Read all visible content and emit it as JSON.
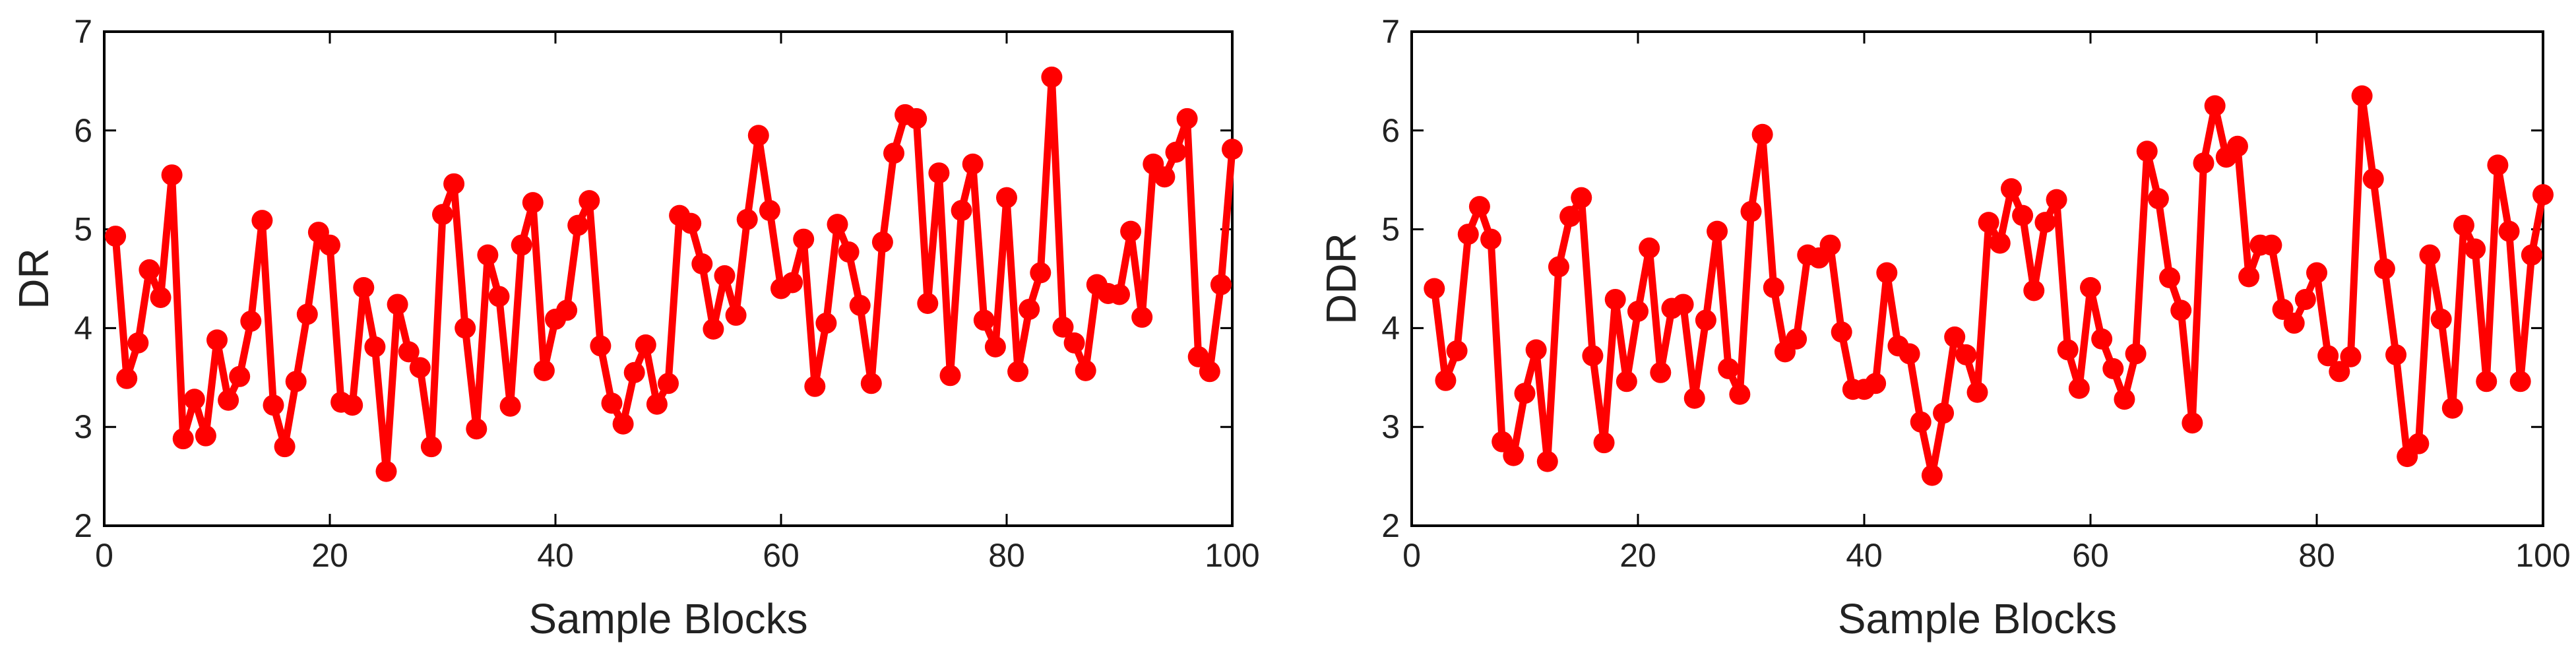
{
  "chart_data": [
    {
      "type": "line",
      "xlabel": "Sample Blocks",
      "ylabel": "DR",
      "xlim": [
        0,
        100
      ],
      "ylim": [
        2,
        7
      ],
      "xticks": [
        0,
        20,
        40,
        60,
        80,
        100
      ],
      "yticks": [
        2,
        3,
        4,
        5,
        6,
        7
      ],
      "grid": false,
      "line_color": "#ff0000",
      "marker": "circle",
      "series": [
        {
          "x": [
            1,
            2,
            3,
            4,
            5,
            6,
            7,
            8,
            9,
            10,
            11,
            12,
            13,
            14,
            15,
            16,
            17,
            18,
            19,
            20,
            21,
            22,
            23,
            24,
            25,
            26,
            27,
            28,
            29,
            30,
            31,
            32,
            33,
            34,
            35,
            36,
            37,
            38,
            39,
            40,
            41,
            42,
            43,
            44,
            45,
            46,
            47,
            48,
            49,
            50,
            51,
            52,
            53,
            54,
            55,
            56,
            57,
            58,
            59,
            60,
            61,
            62,
            63,
            64,
            65,
            66,
            67,
            68,
            69,
            70,
            71,
            72,
            73,
            74,
            75,
            76,
            77,
            78,
            79,
            80,
            81,
            82,
            83,
            84,
            85,
            86,
            87,
            88,
            89,
            90,
            91,
            92,
            93,
            94,
            95,
            96,
            97,
            98,
            99,
            100
          ],
          "y": [
            4.93,
            3.49,
            3.85,
            4.59,
            4.31,
            5.55,
            2.88,
            3.28,
            2.91,
            3.88,
            3.27,
            3.51,
            4.07,
            5.09,
            3.22,
            2.8,
            3.46,
            4.14,
            4.97,
            4.84,
            3.25,
            3.22,
            4.41,
            3.81,
            2.55,
            4.24,
            3.76,
            3.6,
            2.8,
            5.15,
            5.46,
            4.0,
            2.98,
            4.74,
            4.32,
            3.21,
            4.84,
            5.27,
            3.57,
            4.09,
            4.18,
            5.04,
            5.29,
            3.82,
            3.24,
            3.03,
            3.55,
            3.83,
            3.23,
            3.44,
            5.14,
            5.06,
            4.65,
            3.99,
            4.53,
            4.13,
            5.1,
            5.95,
            5.19,
            4.4,
            4.46,
            4.9,
            3.41,
            4.05,
            5.05,
            4.77,
            4.23,
            3.44,
            4.87,
            5.77,
            6.16,
            6.12,
            4.25,
            5.57,
            3.52,
            5.19,
            5.66,
            4.08,
            3.81,
            5.32,
            3.56,
            4.19,
            4.56,
            6.54,
            4.01,
            3.85,
            3.57,
            4.44,
            4.35,
            4.34,
            4.98,
            4.11,
            5.66,
            5.53,
            5.78,
            6.12,
            3.71,
            3.56,
            4.44,
            5.81
          ]
        }
      ]
    },
    {
      "type": "line",
      "xlabel": "Sample Blocks",
      "ylabel": "DDR",
      "xlim": [
        0,
        100
      ],
      "ylim": [
        2,
        7
      ],
      "xticks": [
        0,
        20,
        40,
        60,
        80,
        100
      ],
      "yticks": [
        2,
        3,
        4,
        5,
        6,
        7
      ],
      "grid": false,
      "line_color": "#ff0000",
      "marker": "circle",
      "series": [
        {
          "x": [
            2,
            3,
            4,
            5,
            6,
            7,
            8,
            9,
            10,
            11,
            12,
            13,
            14,
            15,
            16,
            17,
            18,
            19,
            20,
            21,
            22,
            23,
            24,
            25,
            26,
            27,
            28,
            29,
            30,
            31,
            32,
            33,
            34,
            35,
            36,
            37,
            38,
            39,
            40,
            41,
            42,
            43,
            44,
            45,
            46,
            47,
            48,
            49,
            50,
            51,
            52,
            53,
            54,
            55,
            56,
            57,
            58,
            59,
            60,
            61,
            62,
            63,
            64,
            65,
            66,
            67,
            68,
            69,
            70,
            71,
            72,
            73,
            74,
            75,
            76,
            77,
            78,
            79,
            80,
            81,
            82,
            83,
            84,
            85,
            86,
            87,
            88,
            89,
            90,
            91,
            92,
            93,
            94,
            95,
            96,
            97,
            98,
            99,
            100
          ],
          "y": [
            4.4,
            3.47,
            3.77,
            4.95,
            5.23,
            4.9,
            2.85,
            2.71,
            3.34,
            3.78,
            2.65,
            4.62,
            5.13,
            5.32,
            3.72,
            2.84,
            4.29,
            3.46,
            4.17,
            4.81,
            3.55,
            4.2,
            4.24,
            3.29,
            4.08,
            4.98,
            3.59,
            3.33,
            5.18,
            5.96,
            4.41,
            3.76,
            3.89,
            4.74,
            4.71,
            4.84,
            3.96,
            3.38,
            3.38,
            3.44,
            4.56,
            3.82,
            3.74,
            3.05,
            2.51,
            3.14,
            3.91,
            3.73,
            3.35,
            5.07,
            4.86,
            5.41,
            5.14,
            4.38,
            5.07,
            5.3,
            3.78,
            3.39,
            4.41,
            3.89,
            3.59,
            3.28,
            3.74,
            5.79,
            5.31,
            4.51,
            4.18,
            3.04,
            5.67,
            6.25,
            5.73,
            5.84,
            4.52,
            4.84,
            4.84,
            4.19,
            4.05,
            4.29,
            4.56,
            3.72,
            3.56,
            3.71,
            6.35,
            5.51,
            4.6,
            3.73,
            2.7,
            2.83,
            4.74,
            4.09,
            3.19,
            5.04,
            4.8,
            3.46,
            5.65,
            4.98,
            3.46,
            4.74,
            5.35
          ]
        }
      ]
    }
  ]
}
